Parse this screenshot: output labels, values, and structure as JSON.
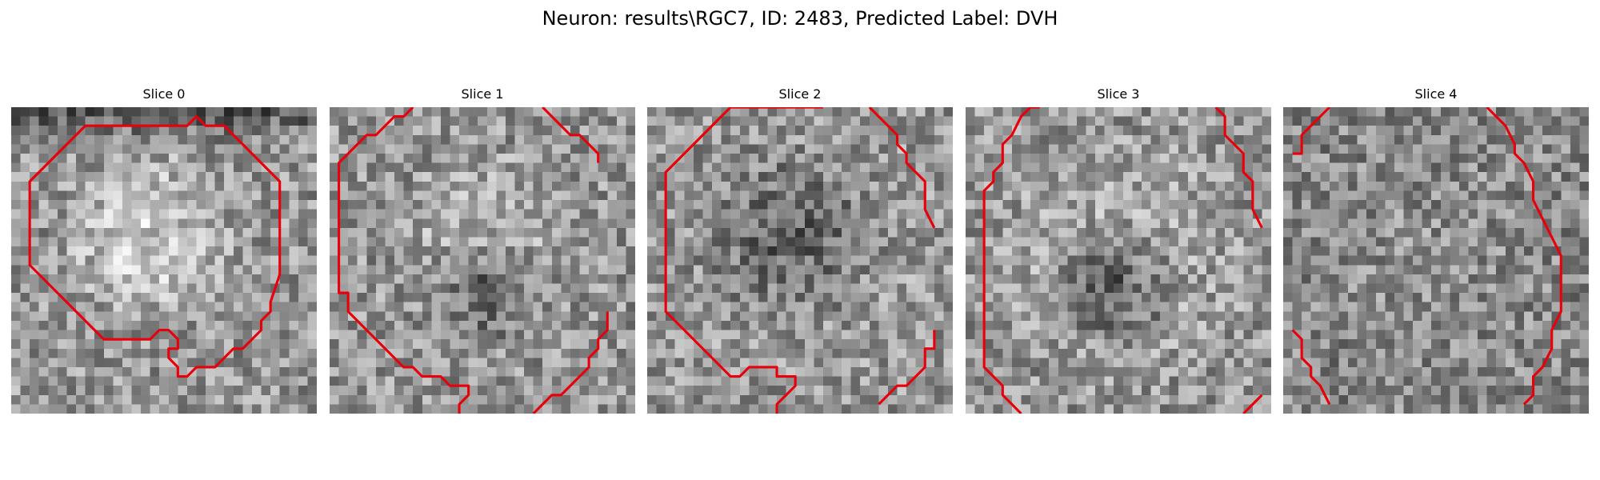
{
  "figure": {
    "title": "Neuron: results\\RGC7, ID: 2483, Predicted Label: DVH"
  },
  "panels": [
    {
      "title": "Slice 0",
      "image": {
        "style": "grayscale-noise",
        "base": 150,
        "bright_center": [
          0.45,
          0.42
        ],
        "bright_radius": 0.33,
        "bright_boost": 70,
        "dark_center": [
          0.48,
          0.42
        ],
        "dark_radius": 0.06,
        "dark_drop": 25,
        "top_band_darkness": 70,
        "seed": 11
      },
      "contour_color": "#e8000b",
      "contours": [
        [
          [
            10,
            2
          ],
          [
            19,
            2
          ],
          [
            20,
            1
          ],
          [
            21,
            2
          ],
          [
            23,
            2
          ],
          [
            29,
            8
          ],
          [
            29,
            18
          ],
          [
            28,
            21
          ],
          [
            28,
            22
          ],
          [
            27,
            23
          ],
          [
            27,
            24
          ],
          [
            25,
            26
          ],
          [
            24,
            26
          ],
          [
            22,
            28
          ],
          [
            20,
            28
          ],
          [
            19,
            29
          ],
          [
            18,
            29
          ],
          [
            18,
            28
          ],
          [
            17,
            27
          ],
          [
            17,
            26
          ],
          [
            18,
            26
          ],
          [
            18,
            25
          ],
          [
            17,
            24
          ],
          [
            16,
            24
          ],
          [
            15,
            25
          ],
          [
            10,
            25
          ],
          [
            2,
            17
          ],
          [
            2,
            8
          ],
          [
            8,
            2
          ],
          [
            10,
            2
          ]
        ]
      ]
    },
    {
      "title": "Slice 1",
      "image": {
        "style": "grayscale-noise",
        "base": 150,
        "bright_center": [
          0.5,
          0.4
        ],
        "bright_radius": 0.3,
        "bright_boost": 40,
        "dark_center": [
          0.5,
          0.58
        ],
        "dark_radius": 0.12,
        "dark_drop": 70,
        "top_band_darkness": 0,
        "seed": 23
      },
      "contour_color": "#e8000b",
      "contours": [
        [
          [
            9,
            0
          ],
          [
            8,
            1
          ],
          [
            7,
            1
          ],
          [
            5,
            3
          ],
          [
            4,
            3
          ],
          [
            1,
            6
          ],
          [
            1,
            20
          ],
          [
            2,
            20
          ],
          [
            2,
            22
          ],
          [
            8,
            28
          ],
          [
            9,
            28
          ],
          [
            10,
            29
          ],
          [
            12,
            29
          ],
          [
            13,
            30
          ],
          [
            15,
            30
          ],
          [
            15,
            31
          ],
          [
            14,
            32
          ],
          [
            14,
            33
          ]
        ],
        [
          [
            23,
            0
          ],
          [
            25,
            2
          ],
          [
            26,
            3
          ],
          [
            27,
            3
          ],
          [
            28,
            4
          ],
          [
            29,
            5
          ],
          [
            29,
            6
          ]
        ],
        [
          [
            22,
            33
          ],
          [
            24,
            31
          ],
          [
            25,
            31
          ],
          [
            27,
            29
          ],
          [
            28,
            28
          ],
          [
            28,
            27
          ],
          [
            29,
            26
          ],
          [
            29,
            25
          ],
          [
            30,
            24
          ],
          [
            30,
            22
          ]
        ]
      ]
    },
    {
      "title": "Slice 2",
      "image": {
        "style": "grayscale-noise",
        "base": 150,
        "bright_center": [
          0.5,
          0.5
        ],
        "bright_radius": 0.45,
        "bright_boost": 20,
        "dark_center": [
          0.47,
          0.43
        ],
        "dark_radius": 0.2,
        "dark_drop": 80,
        "top_band_darkness": 0,
        "seed": 37
      },
      "contour_color": "#e8000b",
      "contours": [
        [
          [
            19,
            0
          ],
          [
            9,
            0
          ],
          [
            2,
            7
          ],
          [
            2,
            22
          ],
          [
            9,
            29
          ],
          [
            10,
            29
          ],
          [
            11,
            28
          ],
          [
            14,
            28
          ],
          [
            14,
            29
          ],
          [
            16,
            29
          ],
          [
            16,
            30
          ],
          [
            14,
            32
          ],
          [
            14,
            33
          ]
        ],
        [
          [
            24,
            0
          ],
          [
            26,
            2
          ],
          [
            27,
            3
          ],
          [
            27,
            4
          ],
          [
            28,
            5
          ],
          [
            28,
            6
          ],
          [
            30,
            8
          ],
          [
            30,
            11
          ],
          [
            31,
            13
          ]
        ],
        [
          [
            25,
            32
          ],
          [
            27,
            30
          ],
          [
            28,
            30
          ],
          [
            29,
            29
          ],
          [
            30,
            28
          ],
          [
            30,
            26
          ],
          [
            31,
            26
          ],
          [
            31,
            24
          ]
        ]
      ]
    },
    {
      "title": "Slice 3",
      "image": {
        "style": "grayscale-noise",
        "base": 150,
        "bright_center": [
          0.5,
          0.5
        ],
        "bright_radius": 0.45,
        "bright_boost": 35,
        "dark_center": [
          0.48,
          0.58
        ],
        "dark_radius": 0.14,
        "dark_drop": 100,
        "top_band_darkness": 0,
        "seed": 41
      },
      "contour_color": "#e8000b",
      "contours": [
        [
          [
            8,
            0
          ],
          [
            7,
            0
          ],
          [
            6,
            1
          ],
          [
            5,
            3
          ],
          [
            4,
            4
          ],
          [
            4,
            6
          ],
          [
            3,
            7
          ],
          [
            3,
            8
          ],
          [
            2,
            9
          ],
          [
            2,
            28
          ],
          [
            4,
            30
          ],
          [
            4,
            31
          ],
          [
            5,
            32
          ],
          [
            6,
            33
          ]
        ],
        [
          [
            27,
            0
          ],
          [
            28,
            1
          ],
          [
            28,
            3
          ],
          [
            30,
            5
          ],
          [
            30,
            7
          ],
          [
            31,
            8
          ],
          [
            31,
            11
          ],
          [
            32,
            13
          ]
        ],
        [
          [
            30,
            33
          ],
          [
            32,
            31
          ]
        ]
      ]
    },
    {
      "title": "Slice 4",
      "image": {
        "style": "grayscale-noise",
        "base": 135,
        "bright_center": [
          0.5,
          0.5
        ],
        "bright_radius": 0.5,
        "bright_boost": 10,
        "dark_center": [
          0.5,
          0.5
        ],
        "dark_radius": 0.05,
        "dark_drop": 0,
        "top_band_darkness": 0,
        "seed": 53
      },
      "contour_color": "#e8000b",
      "contours": [
        [
          [
            5,
            0
          ],
          [
            3,
            2
          ],
          [
            2,
            3
          ],
          [
            2,
            5
          ],
          [
            1,
            5
          ]
        ],
        [
          [
            22,
            0
          ],
          [
            24,
            2
          ],
          [
            25,
            4
          ],
          [
            25,
            5
          ],
          [
            26,
            6
          ],
          [
            27,
            8
          ],
          [
            27,
            10
          ],
          [
            28,
            12
          ],
          [
            29,
            14
          ],
          [
            30,
            16
          ],
          [
            30,
            22
          ],
          [
            29,
            24
          ],
          [
            29,
            26
          ],
          [
            28,
            28
          ],
          [
            27,
            29
          ],
          [
            27,
            31
          ],
          [
            26,
            32
          ]
        ],
        [
          [
            1,
            24
          ],
          [
            2,
            25
          ],
          [
            2,
            27
          ],
          [
            3,
            28
          ],
          [
            3,
            29
          ],
          [
            4,
            30
          ],
          [
            5,
            32
          ]
        ]
      ]
    }
  ]
}
